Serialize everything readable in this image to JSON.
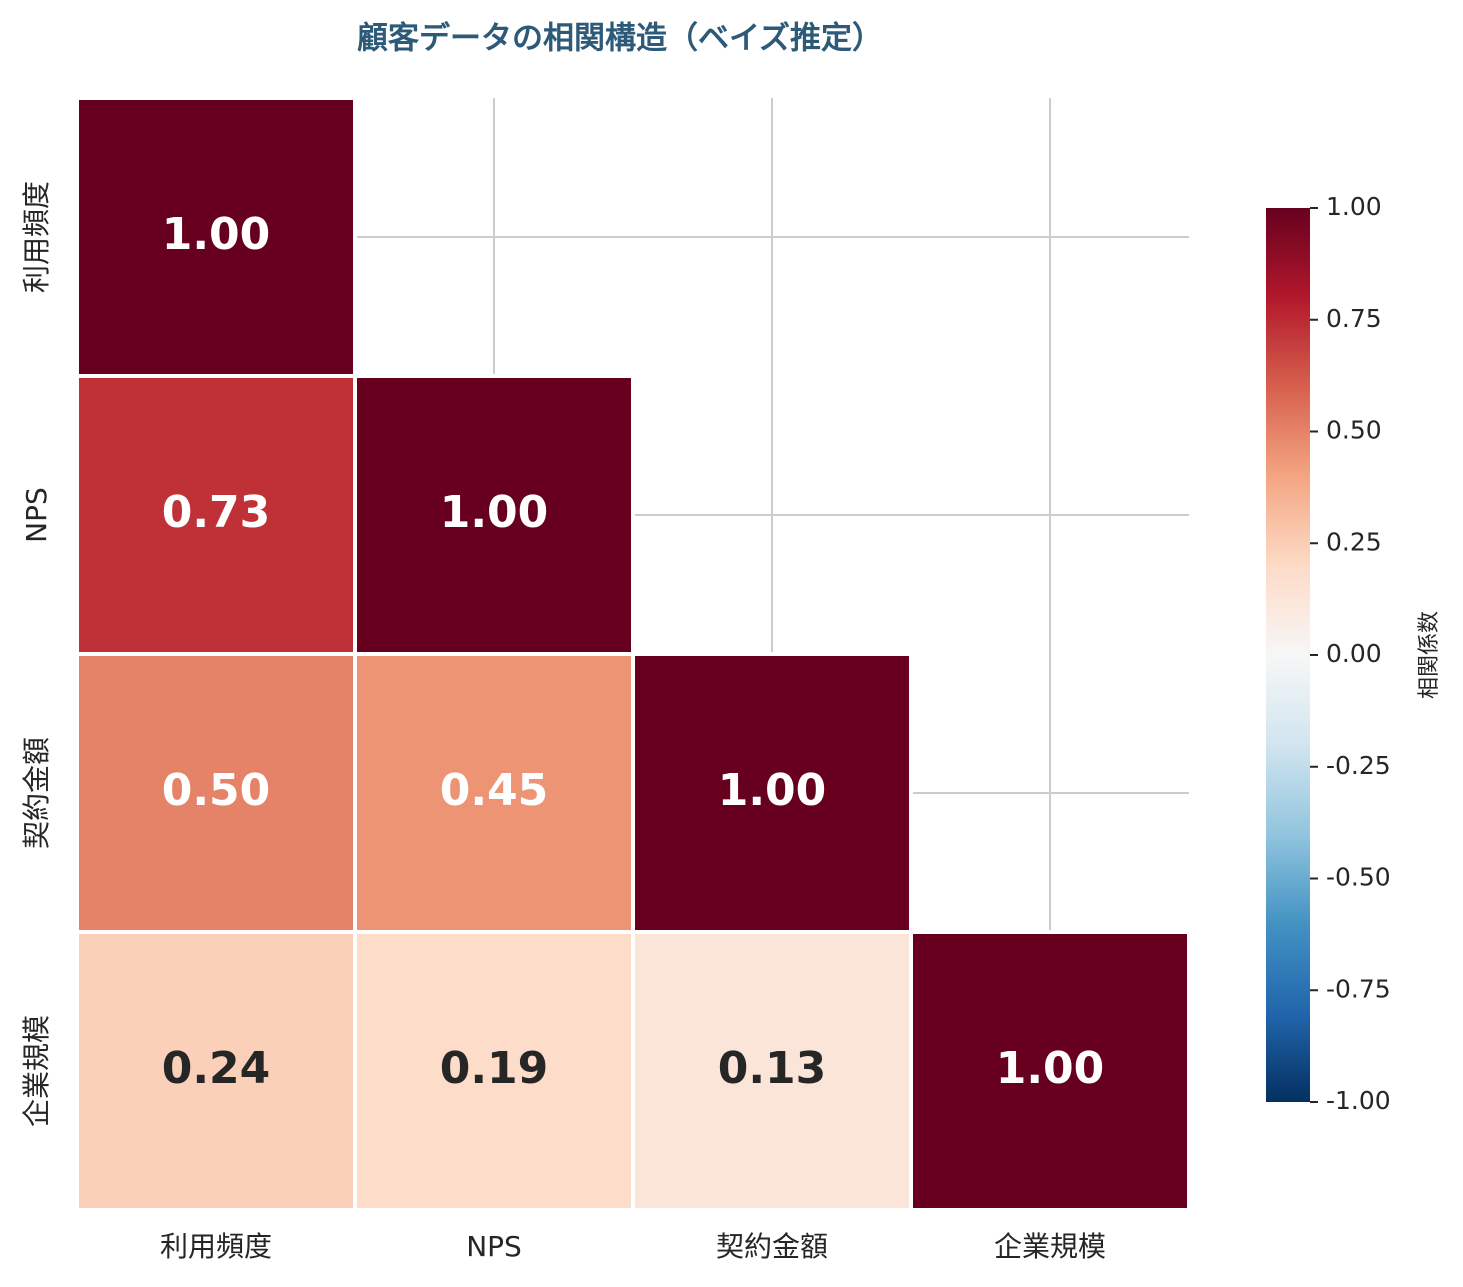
{
  "chart_data": {
    "type": "heatmap",
    "title": "顧客データの相関構造（ベイズ推定）",
    "x_categories": [
      "利用頻度",
      "NPS",
      "契約金額",
      "企業規模"
    ],
    "y_categories": [
      "利用頻度",
      "NPS",
      "契約金額",
      "企業規模"
    ],
    "values": [
      [
        1,
        null,
        null,
        null
      ],
      [
        0.73,
        1,
        null,
        null
      ],
      [
        0.5,
        0.45,
        1,
        null
      ],
      [
        0.24,
        0.19,
        0.13,
        1
      ]
    ],
    "value_labels": [
      [
        "1.00",
        null,
        null,
        null
      ],
      [
        "0.73",
        "1.00",
        null,
        null
      ],
      [
        "0.50",
        "0.45",
        "1.00",
        null
      ],
      [
        "0.24",
        "0.19",
        "0.13",
        "1.00"
      ]
    ],
    "zlim": [
      -1,
      1
    ],
    "colormap": [
      "#053061",
      "#2166ac",
      "#4393c3",
      "#92c5de",
      "#d1e5f0",
      "#f7f7f7",
      "#fddbc7",
      "#f4a582",
      "#d6604d",
      "#b2182b",
      "#67001f"
    ],
    "colorbar_label": "相関係数",
    "colorbar_ticks": [
      {
        "value": 1,
        "label": "1.00"
      },
      {
        "value": 0.75,
        "label": "0.75"
      },
      {
        "value": 0.5,
        "label": "0.50"
      },
      {
        "value": 0.25,
        "label": "0.25"
      },
      {
        "value": 0,
        "label": "0.00"
      },
      {
        "value": -0.25,
        "label": "-0.25"
      },
      {
        "value": -0.5,
        "label": "-0.50"
      },
      {
        "value": -0.75,
        "label": "-0.75"
      },
      {
        "value": -1,
        "label": "-1.00"
      }
    ],
    "grid": true
  }
}
